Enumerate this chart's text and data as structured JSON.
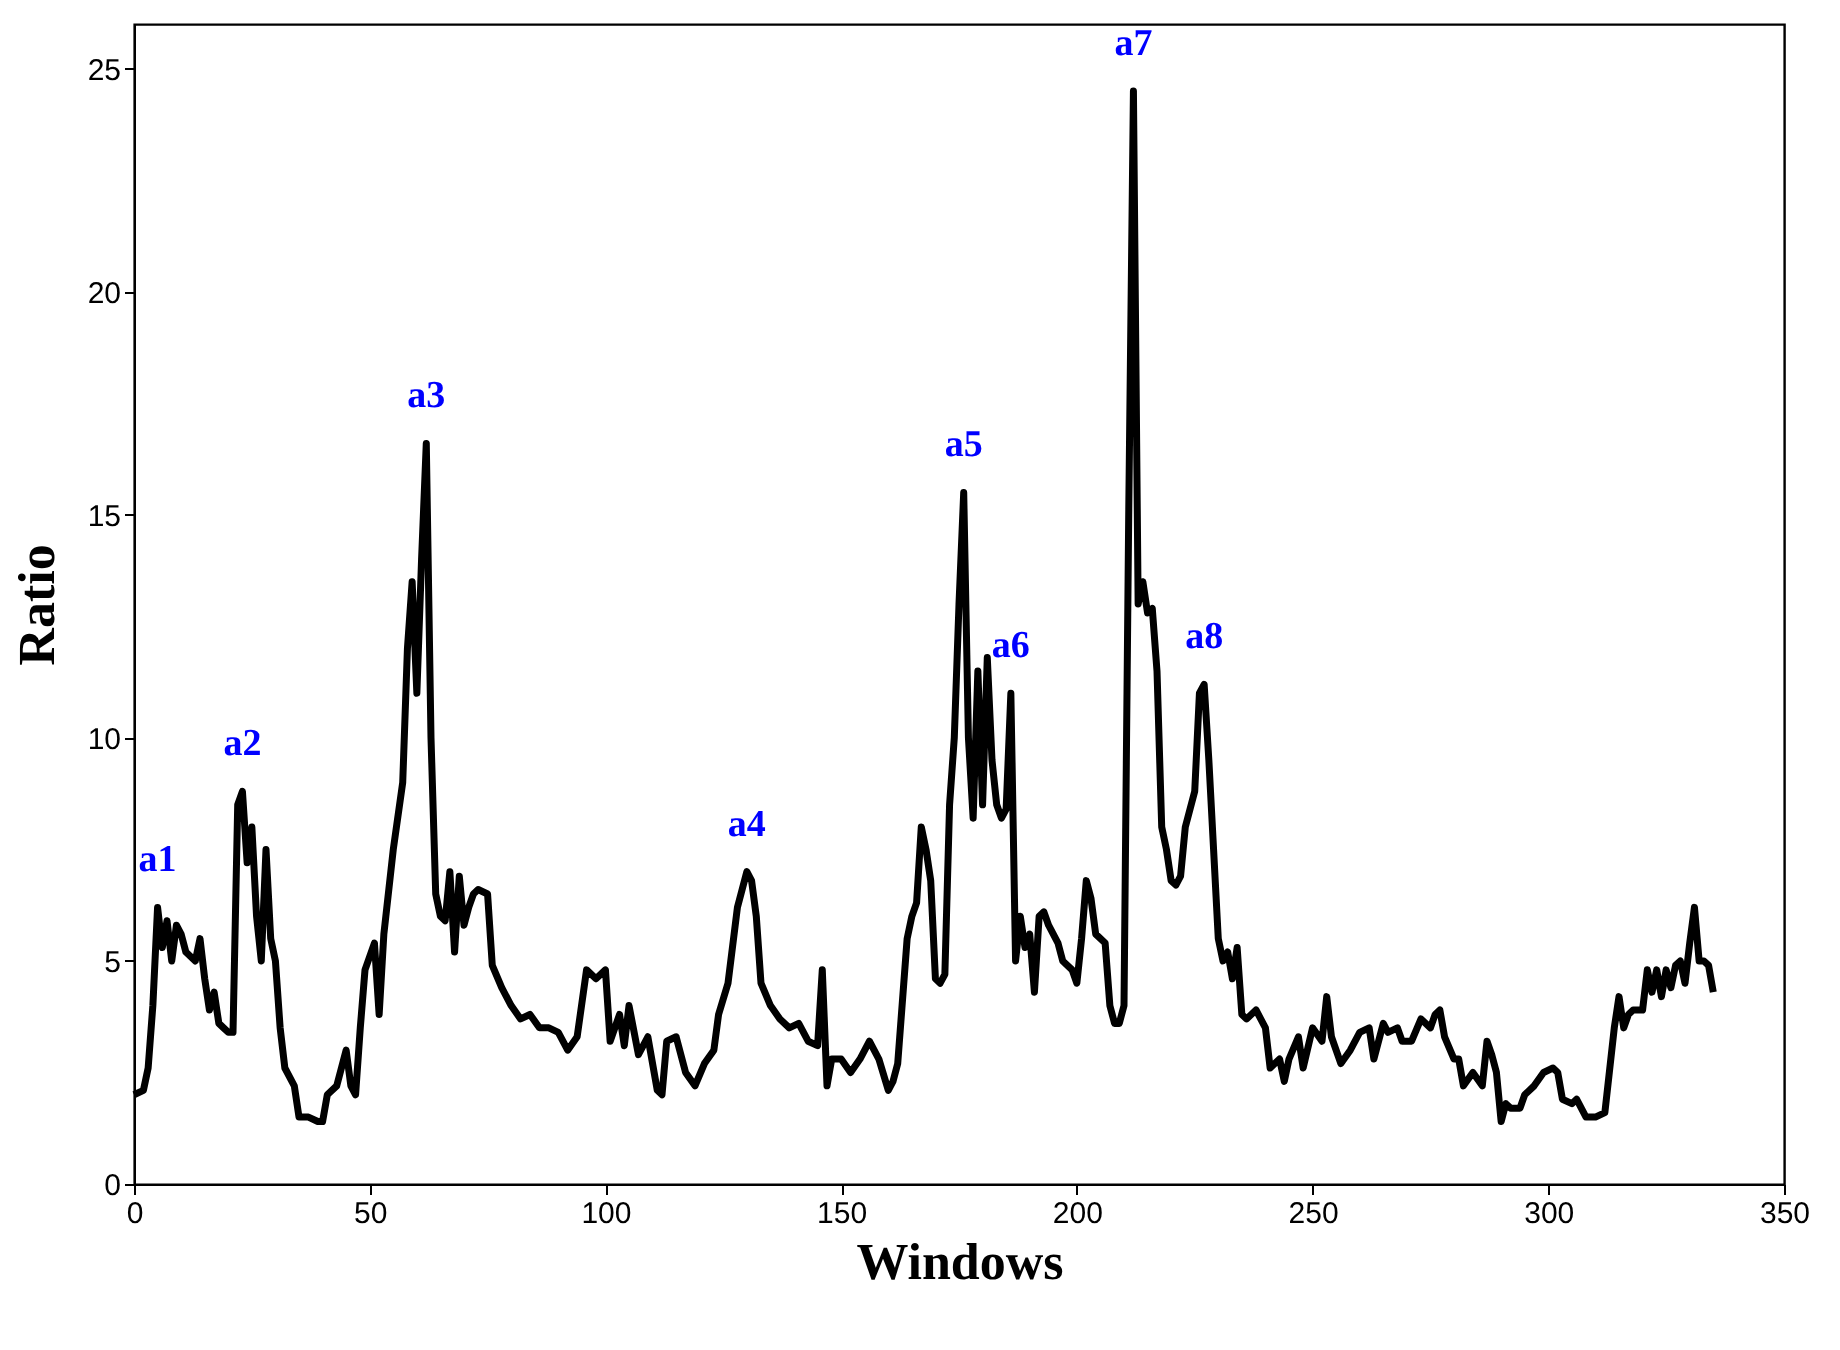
{
  "chart_data": {
    "type": "line",
    "xlabel": "Windows",
    "ylabel": "Ratio",
    "xlim": [
      0,
      350
    ],
    "ylim": [
      0,
      26
    ],
    "xticks": [
      0,
      50,
      100,
      150,
      200,
      250,
      300,
      350
    ],
    "yticks": [
      0,
      5,
      10,
      15,
      20,
      25
    ],
    "grid": false,
    "marker": "none",
    "line_style": "solid",
    "series": [
      {
        "color": "#000000",
        "x": [
          0,
          2,
          3,
          4,
          5,
          6,
          7,
          8,
          9,
          10,
          11,
          13,
          14,
          15,
          16,
          17,
          18,
          19,
          20,
          21,
          22,
          23,
          24,
          25,
          26,
          27,
          28,
          29,
          30,
          31,
          32,
          34,
          35,
          37,
          39,
          40,
          41,
          43,
          45,
          46,
          47,
          48,
          49,
          51,
          52,
          53,
          55,
          57,
          58,
          59,
          60,
          61,
          62,
          63,
          64,
          65,
          66,
          67,
          68,
          69,
          70,
          71,
          72,
          73,
          75,
          76,
          78,
          80,
          82,
          84,
          86,
          88,
          90,
          92,
          94,
          96,
          98,
          100,
          101,
          103,
          104,
          105,
          107,
          109,
          111,
          112,
          113,
          115,
          117,
          119,
          121,
          123,
          124,
          126,
          128,
          130,
          131,
          132,
          133,
          135,
          137,
          139,
          141,
          143,
          145,
          146,
          147,
          148,
          150,
          152,
          154,
          156,
          158,
          160,
          161,
          162,
          164,
          165,
          166,
          167,
          168,
          169,
          170,
          171,
          172,
          173,
          174,
          175,
          176,
          177,
          178,
          179,
          180,
          181,
          182,
          183,
          184,
          185,
          186,
          187,
          188,
          189,
          190,
          191,
          192,
          193,
          194,
          196,
          197,
          199,
          200,
          201,
          202,
          203,
          204,
          206,
          207,
          208,
          209,
          210,
          211,
          212,
          213,
          214,
          215,
          216,
          217,
          218,
          219,
          220,
          221,
          222,
          223,
          225,
          226,
          227,
          228,
          229,
          230,
          231,
          232,
          233,
          234,
          235,
          236,
          238,
          240,
          241,
          243,
          244,
          245,
          247,
          248,
          250,
          252,
          253,
          254,
          256,
          258,
          260,
          262,
          263,
          265,
          266,
          268,
          269,
          271,
          273,
          275,
          276,
          277,
          278,
          280,
          281,
          282,
          284,
          286,
          287,
          288,
          289,
          290,
          291,
          292,
          294,
          295,
          297,
          299,
          301,
          302,
          303,
          305,
          306,
          308,
          310,
          312,
          314,
          315,
          316,
          317,
          318,
          320,
          321,
          322,
          323,
          324,
          325,
          326,
          327,
          328,
          329,
          330,
          331,
          332,
          333,
          334,
          335
        ],
        "values": [
          2.0,
          2.1,
          2.6,
          4.0,
          6.2,
          5.3,
          5.9,
          5.0,
          5.8,
          5.6,
          5.2,
          5.0,
          5.5,
          4.6,
          3.9,
          4.3,
          3.6,
          3.5,
          3.4,
          3.4,
          8.5,
          8.8,
          7.2,
          8.0,
          6.0,
          5.0,
          7.5,
          5.5,
          5.0,
          3.5,
          2.6,
          2.2,
          1.5,
          1.5,
          1.4,
          1.4,
          2.0,
          2.2,
          3.0,
          2.2,
          2.0,
          3.5,
          4.8,
          5.4,
          3.8,
          5.6,
          7.5,
          9.0,
          12.0,
          13.5,
          11.0,
          14.0,
          16.6,
          10.0,
          6.5,
          6.0,
          5.9,
          7.0,
          5.2,
          6.9,
          5.8,
          6.2,
          6.5,
          6.6,
          6.5,
          4.9,
          4.4,
          4.0,
          3.7,
          3.8,
          3.5,
          3.5,
          3.4,
          3.0,
          3.3,
          4.8,
          4.6,
          4.8,
          3.2,
          3.8,
          3.1,
          4.0,
          2.9,
          3.3,
          2.1,
          2.0,
          3.2,
          3.3,
          2.5,
          2.2,
          2.7,
          3.0,
          3.8,
          4.5,
          6.2,
          7.0,
          6.8,
          6.0,
          4.5,
          4.0,
          3.7,
          3.5,
          3.6,
          3.2,
          3.1,
          4.8,
          2.2,
          2.8,
          2.8,
          2.5,
          2.8,
          3.2,
          2.8,
          2.1,
          2.3,
          2.7,
          5.5,
          6.0,
          6.3,
          8.0,
          7.5,
          6.8,
          4.6,
          4.5,
          4.7,
          8.5,
          10.0,
          13.0,
          15.5,
          10.0,
          8.2,
          11.5,
          8.5,
          11.8,
          9.5,
          8.5,
          8.2,
          8.4,
          11.0,
          5.0,
          6.0,
          5.3,
          5.6,
          4.3,
          6.0,
          6.1,
          5.8,
          5.4,
          5.0,
          4.8,
          4.5,
          5.5,
          6.8,
          6.4,
          5.6,
          5.4,
          4.0,
          3.6,
          3.6,
          4.0,
          15.0,
          24.5,
          13.0,
          13.5,
          12.8,
          12.9,
          11.5,
          8.0,
          7.5,
          6.8,
          6.7,
          6.9,
          8.0,
          8.8,
          11.0,
          11.2,
          9.5,
          7.5,
          5.5,
          5.0,
          5.2,
          4.6,
          5.3,
          3.8,
          3.7,
          3.9,
          3.5,
          2.6,
          2.8,
          2.3,
          2.8,
          3.3,
          2.6,
          3.5,
          3.2,
          4.2,
          3.3,
          2.7,
          3.0,
          3.4,
          3.5,
          2.8,
          3.6,
          3.4,
          3.5,
          3.2,
          3.2,
          3.7,
          3.5,
          3.8,
          3.9,
          3.3,
          2.8,
          2.8,
          2.2,
          2.5,
          2.2,
          3.2,
          2.9,
          2.5,
          1.4,
          1.8,
          1.7,
          1.7,
          2.0,
          2.2,
          2.5,
          2.6,
          2.5,
          1.9,
          1.8,
          1.9,
          1.5,
          1.5,
          1.6,
          3.5,
          4.2,
          3.5,
          3.8,
          3.9,
          3.9,
          4.8,
          4.3,
          4.8,
          4.2,
          4.8,
          4.4,
          4.9,
          5.0,
          4.5,
          5.4,
          6.2,
          5.0,
          5.0,
          4.9,
          4.3
        ]
      }
    ],
    "annotations": [
      {
        "text": "a1",
        "x": 5,
        "y": 6.2
      },
      {
        "text": "a2",
        "x": 23,
        "y": 8.8
      },
      {
        "text": "a3",
        "x": 62,
        "y": 16.6
      },
      {
        "text": "a4",
        "x": 130,
        "y": 7.0
      },
      {
        "text": "a5",
        "x": 176,
        "y": 15.5
      },
      {
        "text": "a6",
        "x": 186,
        "y": 11.0
      },
      {
        "text": "a7",
        "x": 212,
        "y": 24.5
      },
      {
        "text": "a8",
        "x": 227,
        "y": 11.2
      }
    ]
  }
}
